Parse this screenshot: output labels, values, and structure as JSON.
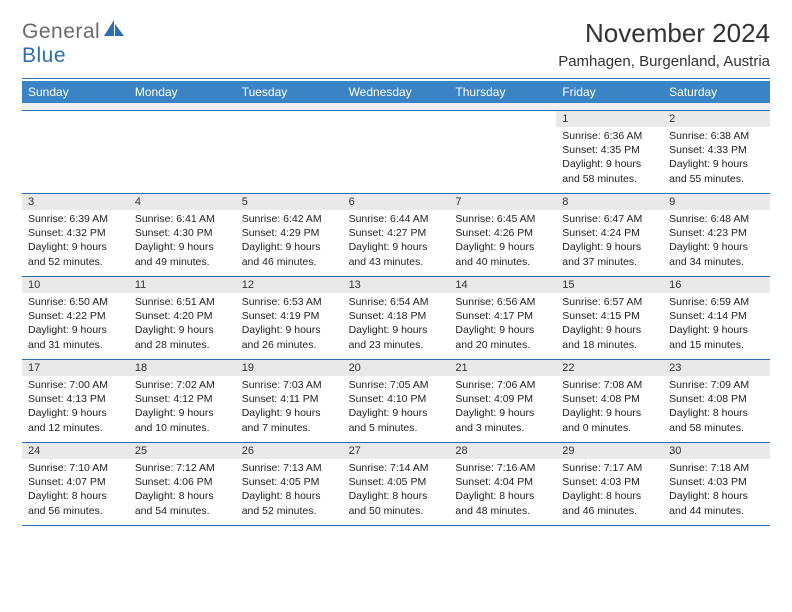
{
  "logo": {
    "text1": "General",
    "text2": "Blue"
  },
  "title": "November 2024",
  "location": "Pamhagen, Burgenland, Austria",
  "colors": {
    "header_bg": "#3a84c6",
    "rule": "#2a6fb3",
    "daynum_bg": "#e9e9e9",
    "logo_gray": "#6b6b6b",
    "logo_blue": "#2a6fb3"
  },
  "day_labels": [
    "Sunday",
    "Monday",
    "Tuesday",
    "Wednesday",
    "Thursday",
    "Friday",
    "Saturday"
  ],
  "weeks": [
    [
      null,
      null,
      null,
      null,
      null,
      {
        "n": "1",
        "sr": "6:36 AM",
        "ss": "4:35 PM",
        "dl": "9 hours and 58 minutes."
      },
      {
        "n": "2",
        "sr": "6:38 AM",
        "ss": "4:33 PM",
        "dl": "9 hours and 55 minutes."
      }
    ],
    [
      {
        "n": "3",
        "sr": "6:39 AM",
        "ss": "4:32 PM",
        "dl": "9 hours and 52 minutes."
      },
      {
        "n": "4",
        "sr": "6:41 AM",
        "ss": "4:30 PM",
        "dl": "9 hours and 49 minutes."
      },
      {
        "n": "5",
        "sr": "6:42 AM",
        "ss": "4:29 PM",
        "dl": "9 hours and 46 minutes."
      },
      {
        "n": "6",
        "sr": "6:44 AM",
        "ss": "4:27 PM",
        "dl": "9 hours and 43 minutes."
      },
      {
        "n": "7",
        "sr": "6:45 AM",
        "ss": "4:26 PM",
        "dl": "9 hours and 40 minutes."
      },
      {
        "n": "8",
        "sr": "6:47 AM",
        "ss": "4:24 PM",
        "dl": "9 hours and 37 minutes."
      },
      {
        "n": "9",
        "sr": "6:48 AM",
        "ss": "4:23 PM",
        "dl": "9 hours and 34 minutes."
      }
    ],
    [
      {
        "n": "10",
        "sr": "6:50 AM",
        "ss": "4:22 PM",
        "dl": "9 hours and 31 minutes."
      },
      {
        "n": "11",
        "sr": "6:51 AM",
        "ss": "4:20 PM",
        "dl": "9 hours and 28 minutes."
      },
      {
        "n": "12",
        "sr": "6:53 AM",
        "ss": "4:19 PM",
        "dl": "9 hours and 26 minutes."
      },
      {
        "n": "13",
        "sr": "6:54 AM",
        "ss": "4:18 PM",
        "dl": "9 hours and 23 minutes."
      },
      {
        "n": "14",
        "sr": "6:56 AM",
        "ss": "4:17 PM",
        "dl": "9 hours and 20 minutes."
      },
      {
        "n": "15",
        "sr": "6:57 AM",
        "ss": "4:15 PM",
        "dl": "9 hours and 18 minutes."
      },
      {
        "n": "16",
        "sr": "6:59 AM",
        "ss": "4:14 PM",
        "dl": "9 hours and 15 minutes."
      }
    ],
    [
      {
        "n": "17",
        "sr": "7:00 AM",
        "ss": "4:13 PM",
        "dl": "9 hours and 12 minutes."
      },
      {
        "n": "18",
        "sr": "7:02 AM",
        "ss": "4:12 PM",
        "dl": "9 hours and 10 minutes."
      },
      {
        "n": "19",
        "sr": "7:03 AM",
        "ss": "4:11 PM",
        "dl": "9 hours and 7 minutes."
      },
      {
        "n": "20",
        "sr": "7:05 AM",
        "ss": "4:10 PM",
        "dl": "9 hours and 5 minutes."
      },
      {
        "n": "21",
        "sr": "7:06 AM",
        "ss": "4:09 PM",
        "dl": "9 hours and 3 minutes."
      },
      {
        "n": "22",
        "sr": "7:08 AM",
        "ss": "4:08 PM",
        "dl": "9 hours and 0 minutes."
      },
      {
        "n": "23",
        "sr": "7:09 AM",
        "ss": "4:08 PM",
        "dl": "8 hours and 58 minutes."
      }
    ],
    [
      {
        "n": "24",
        "sr": "7:10 AM",
        "ss": "4:07 PM",
        "dl": "8 hours and 56 minutes."
      },
      {
        "n": "25",
        "sr": "7:12 AM",
        "ss": "4:06 PM",
        "dl": "8 hours and 54 minutes."
      },
      {
        "n": "26",
        "sr": "7:13 AM",
        "ss": "4:05 PM",
        "dl": "8 hours and 52 minutes."
      },
      {
        "n": "27",
        "sr": "7:14 AM",
        "ss": "4:05 PM",
        "dl": "8 hours and 50 minutes."
      },
      {
        "n": "28",
        "sr": "7:16 AM",
        "ss": "4:04 PM",
        "dl": "8 hours and 48 minutes."
      },
      {
        "n": "29",
        "sr": "7:17 AM",
        "ss": "4:03 PM",
        "dl": "8 hours and 46 minutes."
      },
      {
        "n": "30",
        "sr": "7:18 AM",
        "ss": "4:03 PM",
        "dl": "8 hours and 44 minutes."
      }
    ]
  ],
  "labels": {
    "sunrise": "Sunrise:",
    "sunset": "Sunset:",
    "daylight": "Daylight:"
  }
}
